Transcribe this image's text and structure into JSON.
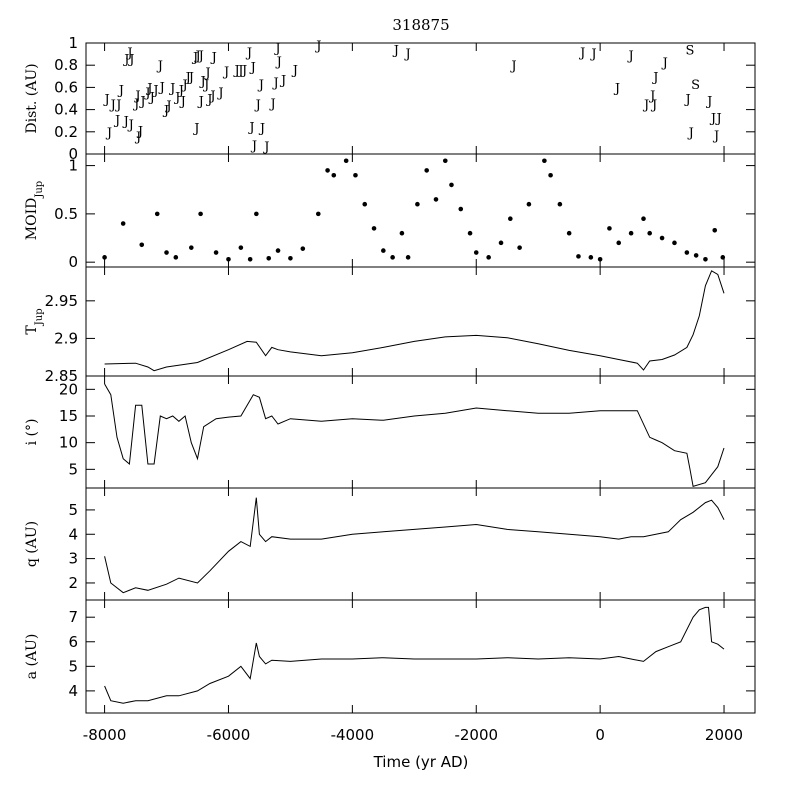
{
  "chart_data": {
    "type": "line",
    "title": "318875",
    "xlabel": "Time (yr AD)",
    "xlim": [
      -8300,
      2500
    ],
    "xticks": [
      -8000,
      -6000,
      -4000,
      -2000,
      0,
      2000
    ],
    "xtick_labels": [
      "-8000",
      "-6000",
      "-4000",
      "-2000",
      "0",
      "2000"
    ],
    "panels": [
      {
        "key": "dist",
        "ylabel": "Dist. (AU)",
        "ylim": [
          0,
          1
        ],
        "yticks": [
          0,
          0.2,
          0.4,
          0.6,
          0.8,
          1
        ],
        "ytick_labels": [
          "0",
          "0.2",
          "0.4",
          "0.6",
          "0.8",
          "1"
        ],
        "kind": "encounters",
        "points": [
          {
            "t": -7920,
            "d": 0.2,
            "p": "J"
          },
          {
            "t": -7960,
            "d": 0.5,
            "p": "J"
          },
          {
            "t": -7860,
            "d": 0.45,
            "p": "J"
          },
          {
            "t": -7790,
            "d": 0.31,
            "p": "J"
          },
          {
            "t": -7770,
            "d": 0.45,
            "p": "J"
          },
          {
            "t": -7730,
            "d": 0.58,
            "p": "J"
          },
          {
            "t": -7650,
            "d": 0.3,
            "p": "J"
          },
          {
            "t": -7570,
            "d": 0.27,
            "p": "J"
          },
          {
            "t": -7640,
            "d": 0.86,
            "p": "J"
          },
          {
            "t": -7590,
            "d": 0.92,
            "p": "J"
          },
          {
            "t": -7560,
            "d": 0.86,
            "p": "J"
          },
          {
            "t": -7450,
            "d": 0.16,
            "p": "J"
          },
          {
            "t": -7420,
            "d": 0.21,
            "p": "J"
          },
          {
            "t": -7480,
            "d": 0.46,
            "p": "J"
          },
          {
            "t": -7460,
            "d": 0.53,
            "p": "J"
          },
          {
            "t": -7380,
            "d": 0.48,
            "p": "J"
          },
          {
            "t": -7300,
            "d": 0.56,
            "p": "J"
          },
          {
            "t": -7270,
            "d": 0.6,
            "p": "J"
          },
          {
            "t": -7230,
            "d": 0.52,
            "p": "J"
          },
          {
            "t": -7170,
            "d": 0.58,
            "p": "J"
          },
          {
            "t": -7100,
            "d": 0.8,
            "p": "J"
          },
          {
            "t": -7070,
            "d": 0.61,
            "p": "J"
          },
          {
            "t": -7000,
            "d": 0.4,
            "p": "J"
          },
          {
            "t": -6960,
            "d": 0.44,
            "p": "J"
          },
          {
            "t": -6900,
            "d": 0.6,
            "p": "J"
          },
          {
            "t": -6820,
            "d": 0.52,
            "p": "J"
          },
          {
            "t": -6760,
            "d": 0.58,
            "p": "J"
          },
          {
            "t": -6730,
            "d": 0.48,
            "p": "J"
          },
          {
            "t": -6700,
            "d": 0.63,
            "p": "J"
          },
          {
            "t": -6650,
            "d": 0.7,
            "p": "J"
          },
          {
            "t": -6600,
            "d": 0.7,
            "p": "J"
          },
          {
            "t": -6530,
            "d": 0.88,
            "p": "J"
          },
          {
            "t": -6490,
            "d": 0.89,
            "p": "J"
          },
          {
            "t": -6440,
            "d": 0.89,
            "p": "J"
          },
          {
            "t": -6510,
            "d": 0.24,
            "p": "J"
          },
          {
            "t": -6440,
            "d": 0.48,
            "p": "J"
          },
          {
            "t": -6410,
            "d": 0.66,
            "p": "J"
          },
          {
            "t": -6350,
            "d": 0.63,
            "p": "J"
          },
          {
            "t": -6330,
            "d": 0.74,
            "p": "J"
          },
          {
            "t": -6300,
            "d": 0.5,
            "p": "J"
          },
          {
            "t": -6250,
            "d": 0.53,
            "p": "J"
          },
          {
            "t": -6230,
            "d": 0.88,
            "p": "J"
          },
          {
            "t": -6120,
            "d": 0.56,
            "p": "J"
          },
          {
            "t": -6030,
            "d": 0.75,
            "p": "J"
          },
          {
            "t": -5860,
            "d": 0.76,
            "p": "J"
          },
          {
            "t": -5800,
            "d": 0.76,
            "p": "J"
          },
          {
            "t": -5740,
            "d": 0.76,
            "p": "J"
          },
          {
            "t": -5660,
            "d": 0.92,
            "p": "J"
          },
          {
            "t": -5600,
            "d": 0.79,
            "p": "J"
          },
          {
            "t": -5620,
            "d": 0.25,
            "p": "J"
          },
          {
            "t": -5580,
            "d": 0.08,
            "p": "J"
          },
          {
            "t": -5520,
            "d": 0.45,
            "p": "J"
          },
          {
            "t": -5470,
            "d": 0.63,
            "p": "J"
          },
          {
            "t": -5450,
            "d": 0.24,
            "p": "J"
          },
          {
            "t": -5380,
            "d": 0.07,
            "p": "J"
          },
          {
            "t": -5280,
            "d": 0.46,
            "p": "J"
          },
          {
            "t": -5230,
            "d": 0.65,
            "p": "J"
          },
          {
            "t": -5180,
            "d": 0.84,
            "p": "J"
          },
          {
            "t": -5200,
            "d": 0.96,
            "p": "J"
          },
          {
            "t": -5110,
            "d": 0.67,
            "p": "J"
          },
          {
            "t": -4920,
            "d": 0.76,
            "p": "J"
          },
          {
            "t": -4540,
            "d": 0.98,
            "p": "J"
          },
          {
            "t": -3290,
            "d": 0.94,
            "p": "J"
          },
          {
            "t": -3100,
            "d": 0.91,
            "p": "J"
          },
          {
            "t": -1390,
            "d": 0.8,
            "p": "J"
          },
          {
            "t": -280,
            "d": 0.92,
            "p": "J"
          },
          {
            "t": -100,
            "d": 0.91,
            "p": "J"
          },
          {
            "t": 280,
            "d": 0.6,
            "p": "J"
          },
          {
            "t": 500,
            "d": 0.89,
            "p": "J"
          },
          {
            "t": 750,
            "d": 0.45,
            "p": "J"
          },
          {
            "t": 850,
            "d": 0.53,
            "p": "J"
          },
          {
            "t": 880,
            "d": 0.45,
            "p": "J"
          },
          {
            "t": 900,
            "d": 0.7,
            "p": "J"
          },
          {
            "t": 1050,
            "d": 0.83,
            "p": "J"
          },
          {
            "t": 1420,
            "d": 0.5,
            "p": "J"
          },
          {
            "t": 1470,
            "d": 0.2,
            "p": "J"
          },
          {
            "t": 1450,
            "d": 0.94,
            "p": "S"
          },
          {
            "t": 1540,
            "d": 0.63,
            "p": "S"
          },
          {
            "t": 1770,
            "d": 0.48,
            "p": "J"
          },
          {
            "t": 1830,
            "d": 0.33,
            "p": "J"
          },
          {
            "t": 1920,
            "d": 0.33,
            "p": "J"
          },
          {
            "t": 1880,
            "d": 0.17,
            "p": "J"
          }
        ]
      },
      {
        "key": "moid",
        "ylabel": "MOID",
        "ylabel_sub": "Jup",
        "ylim": [
          -0.05,
          1.12
        ],
        "yticks": [
          0,
          0.5,
          1
        ],
        "ytick_labels": [
          "0",
          "0.5",
          "1"
        ],
        "kind": "scatter",
        "x": [
          -8000,
          -7700,
          -7400,
          -7150,
          -7000,
          -6850,
          -6600,
          -6450,
          -6200,
          -6000,
          -5800,
          -5650,
          -5550,
          -5350,
          -5200,
          -5000,
          -4800,
          -4550,
          -4400,
          -4300,
          -4100,
          -3950,
          -3800,
          -3650,
          -3500,
          -3350,
          -3200,
          -3100,
          -2950,
          -2800,
          -2650,
          -2500,
          -2400,
          -2250,
          -2100,
          -2000,
          -1800,
          -1600,
          -1450,
          -1300,
          -1150,
          -900,
          -800,
          -650,
          -500,
          -350,
          -150,
          0,
          150,
          300,
          500,
          700,
          800,
          1000,
          1200,
          1400,
          1550,
          1700,
          1850,
          1980
        ],
        "y": [
          0.05,
          0.4,
          0.18,
          0.5,
          0.1,
          0.05,
          0.15,
          0.5,
          0.1,
          0.03,
          0.15,
          0.03,
          0.5,
          0.04,
          0.12,
          0.04,
          0.14,
          0.5,
          0.95,
          0.9,
          1.05,
          0.9,
          0.6,
          0.35,
          0.12,
          0.05,
          0.3,
          0.05,
          0.6,
          0.95,
          0.65,
          1.05,
          0.8,
          0.55,
          0.3,
          0.1,
          0.05,
          0.2,
          0.45,
          0.15,
          0.6,
          1.05,
          0.9,
          0.6,
          0.3,
          0.06,
          0.05,
          0.03,
          0.35,
          0.2,
          0.3,
          0.45,
          0.3,
          0.25,
          0.2,
          0.1,
          0.07,
          0.03,
          0.33,
          0.05
        ]
      },
      {
        "key": "tjup",
        "ylabel": "T",
        "ylabel_sub": "Jup",
        "ylim": [
          2.85,
          2.995
        ],
        "yticks": [
          2.85,
          2.9,
          2.95
        ],
        "ytick_labels": [
          "2.85",
          "2.9",
          "2.95"
        ],
        "kind": "line",
        "x": [
          -8000,
          -7500,
          -7300,
          -7200,
          -7000,
          -6500,
          -6000,
          -5700,
          -5550,
          -5400,
          -5300,
          -5200,
          -5000,
          -4500,
          -4000,
          -3500,
          -3000,
          -2500,
          -2000,
          -1500,
          -1000,
          -500,
          0,
          300,
          600,
          700,
          800,
          1000,
          1200,
          1400,
          1500,
          1600,
          1700,
          1800,
          1900,
          2000
        ],
        "y": [
          2.866,
          2.867,
          2.862,
          2.857,
          2.862,
          2.868,
          2.885,
          2.896,
          2.895,
          2.877,
          2.888,
          2.885,
          2.882,
          2.877,
          2.881,
          2.888,
          2.896,
          2.902,
          2.904,
          2.901,
          2.893,
          2.884,
          2.877,
          2.872,
          2.867,
          2.858,
          2.87,
          2.872,
          2.878,
          2.888,
          2.905,
          2.93,
          2.97,
          2.99,
          2.985,
          2.96
        ]
      },
      {
        "key": "incl",
        "ylabel": "i (°)",
        "ylim": [
          1.5,
          22.5
        ],
        "yticks": [
          5,
          10,
          15,
          20
        ],
        "ytick_labels": [
          "5",
          "10",
          "15",
          "20"
        ],
        "kind": "line",
        "x": [
          -8000,
          -7900,
          -7800,
          -7700,
          -7600,
          -7500,
          -7400,
          -7300,
          -7200,
          -7100,
          -7000,
          -6900,
          -6800,
          -6700,
          -6600,
          -6500,
          -6400,
          -6200,
          -6000,
          -5800,
          -5600,
          -5500,
          -5400,
          -5300,
          -5200,
          -5000,
          -4500,
          -4000,
          -3500,
          -3000,
          -2500,
          -2000,
          -1500,
          -1000,
          -500,
          0,
          300,
          600,
          800,
          900,
          1000,
          1200,
          1400,
          1450,
          1500,
          1700,
          1800,
          1900,
          2000
        ],
        "y": [
          21,
          19,
          11,
          7,
          6,
          17,
          17,
          6,
          6,
          15,
          14.5,
          15,
          14,
          15,
          10,
          7,
          13,
          14.5,
          14.8,
          15,
          19,
          18.5,
          14.5,
          15,
          13.5,
          14.5,
          14,
          14.5,
          14.2,
          15,
          15.5,
          16.5,
          16,
          15.5,
          15.5,
          16,
          16,
          16,
          11,
          10.5,
          10,
          8.5,
          8,
          5,
          1.8,
          2.5,
          4,
          5.5,
          9
        ]
      },
      {
        "key": "q",
        "ylabel": "q (AU)",
        "ylim": [
          1.3,
          5.9
        ],
        "yticks": [
          2,
          3,
          4,
          5
        ],
        "ytick_labels": [
          "2",
          "3",
          "4",
          "5"
        ],
        "kind": "line",
        "x": [
          -8000,
          -7900,
          -7700,
          -7500,
          -7300,
          -7000,
          -6800,
          -6500,
          -6300,
          -6000,
          -5800,
          -5650,
          -5550,
          -5500,
          -5400,
          -5300,
          -5000,
          -4500,
          -4000,
          -3500,
          -3000,
          -2500,
          -2000,
          -1500,
          -1000,
          -500,
          0,
          300,
          500,
          700,
          900,
          1100,
          1300,
          1500,
          1700,
          1800,
          1900,
          2000
        ],
        "y": [
          3.1,
          2,
          1.6,
          1.8,
          1.7,
          1.95,
          2.2,
          2.0,
          2.5,
          3.3,
          3.7,
          3.5,
          5.5,
          4.0,
          3.7,
          3.9,
          3.8,
          3.8,
          4.0,
          4.1,
          4.2,
          4.3,
          4.4,
          4.2,
          4.1,
          4.0,
          3.9,
          3.8,
          3.9,
          3.9,
          4.0,
          4.1,
          4.6,
          4.9,
          5.3,
          5.4,
          5.1,
          4.6
        ]
      },
      {
        "key": "a",
        "ylabel": "a (AU)",
        "ylim": [
          3.1,
          7.7
        ],
        "yticks": [
          4,
          5,
          6,
          7
        ],
        "ytick_labels": [
          "4",
          "5",
          "6",
          "7"
        ],
        "kind": "line",
        "x": [
          -8000,
          -7900,
          -7700,
          -7500,
          -7300,
          -7000,
          -6800,
          -6500,
          -6300,
          -6000,
          -5800,
          -5650,
          -5550,
          -5500,
          -5400,
          -5300,
          -5000,
          -4500,
          -4000,
          -3500,
          -3000,
          -2500,
          -2000,
          -1500,
          -1000,
          -500,
          0,
          300,
          500,
          700,
          900,
          1100,
          1300,
          1500,
          1600,
          1700,
          1750,
          1800,
          1900,
          2000
        ],
        "y": [
          4.2,
          3.6,
          3.5,
          3.6,
          3.6,
          3.8,
          3.8,
          4.0,
          4.3,
          4.6,
          5.0,
          4.5,
          5.95,
          5.4,
          5.1,
          5.25,
          5.2,
          5.3,
          5.3,
          5.35,
          5.3,
          5.3,
          5.3,
          5.35,
          5.3,
          5.35,
          5.3,
          5.4,
          5.3,
          5.2,
          5.6,
          5.8,
          6.0,
          7.0,
          7.3,
          7.4,
          7.4,
          6.0,
          5.9,
          5.7
        ]
      }
    ]
  }
}
